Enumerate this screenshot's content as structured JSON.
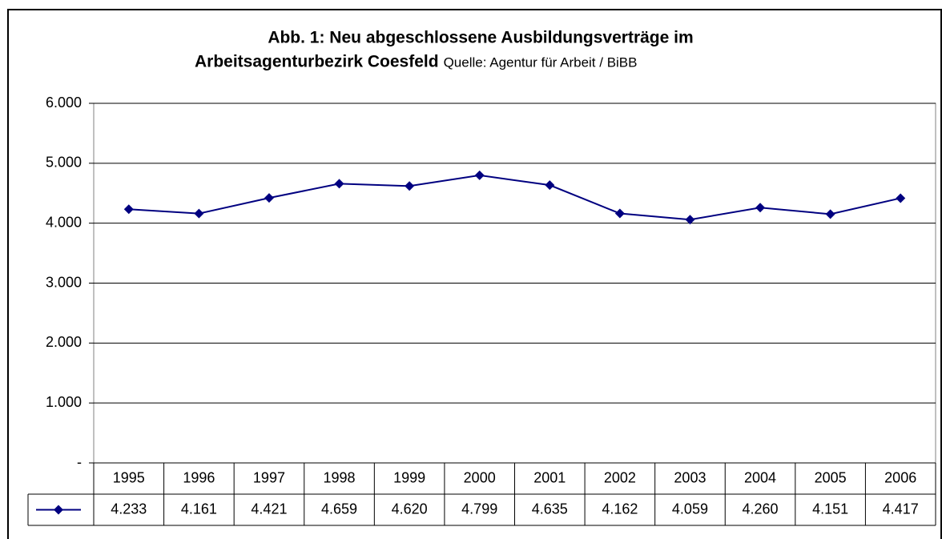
{
  "chart_data": {
    "type": "line",
    "title": [
      "Abb. 1: Neu abgeschlossene  Ausbildungsverträge im",
      "Arbeitsagenturbezirk Coesfeld"
    ],
    "subtitle": "Quelle: Agentur für Arbeit / BiBB",
    "categories": [
      "1995",
      "1996",
      "1997",
      "1998",
      "1999",
      "2000",
      "2001",
      "2002",
      "2003",
      "2004",
      "2005",
      "2006"
    ],
    "series": [
      {
        "color": "#000080",
        "values": [
          4233,
          4161,
          4421,
          4659,
          4620,
          4799,
          4635,
          4162,
          4059,
          4260,
          4151,
          4417
        ],
        "value_labels": [
          "4.233",
          "4.161",
          "4.421",
          "4.659",
          "4.620",
          "4.799",
          "4.635",
          "4.162",
          "4.059",
          "4.260",
          "4.151",
          "4.417"
        ]
      }
    ],
    "ylim": [
      0,
      6000
    ],
    "yticks": [
      {
        "value": 0,
        "label": "-"
      },
      {
        "value": 1000,
        "label": "1.000"
      },
      {
        "value": 2000,
        "label": "2.000"
      },
      {
        "value": 3000,
        "label": "3.000"
      },
      {
        "value": 4000,
        "label": "4.000"
      },
      {
        "value": 5000,
        "label": "5.000"
      },
      {
        "value": 6000,
        "label": "6.000"
      }
    ],
    "grid": true
  }
}
